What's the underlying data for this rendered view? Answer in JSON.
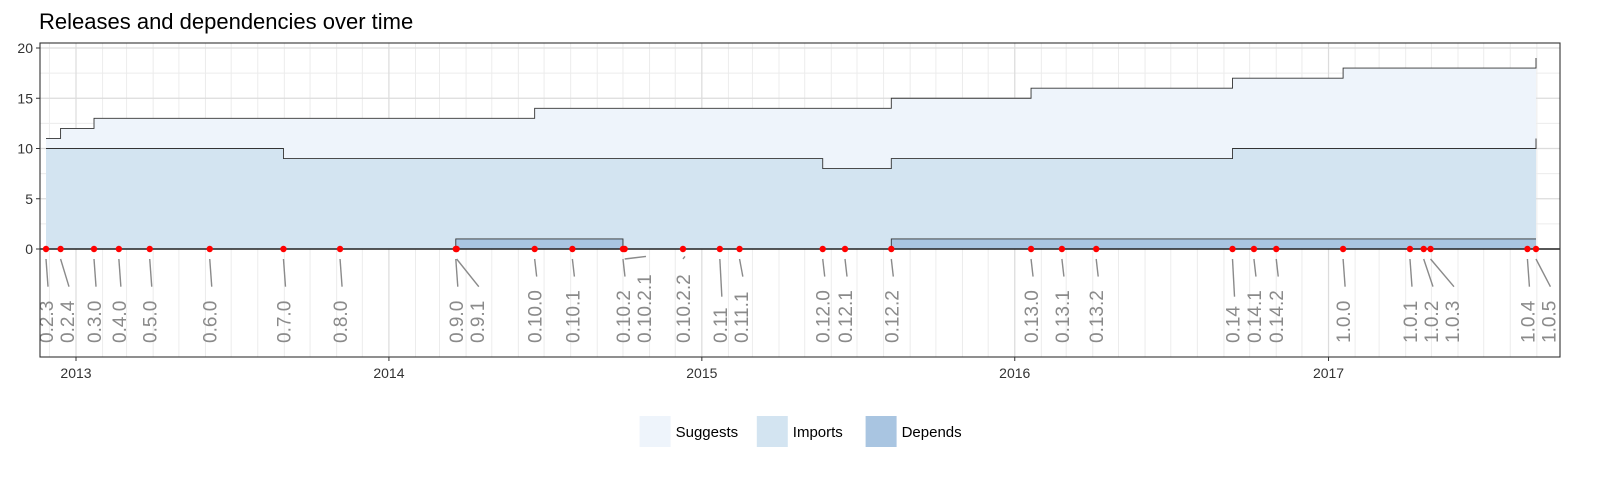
{
  "chart_data": {
    "type": "area",
    "title": "Releases and dependencies over time",
    "xlabel": "",
    "ylabel": "",
    "ylim": [
      0,
      20
    ],
    "y_ticks": [
      0,
      5,
      10,
      15,
      20
    ],
    "x_range": [
      "2012-11-20",
      "2017-09-28"
    ],
    "x_ticks": [
      {
        "date": "2013-01-01",
        "label": "2013"
      },
      {
        "date": "2014-01-01",
        "label": "2014"
      },
      {
        "date": "2015-01-01",
        "label": "2015"
      },
      {
        "date": "2016-01-01",
        "label": "2016"
      },
      {
        "date": "2017-01-01",
        "label": "2017"
      }
    ],
    "grid": true,
    "legend_position": "bottom",
    "colors": {
      "Suggests": "#eef4fb",
      "Imports": "#d3e4f1",
      "Depends": "#a9c5e1",
      "release_point": "#ff0000"
    },
    "releases": [
      {
        "version": "0.2.3",
        "date": "2012-11-27",
        "depends": 0,
        "imports": 10,
        "suggests": 1
      },
      {
        "version": "0.2.4",
        "date": "2012-12-14",
        "depends": 0,
        "imports": 10,
        "suggests": 2
      },
      {
        "version": "0.3.0",
        "date": "2013-01-22",
        "depends": 0,
        "imports": 10,
        "suggests": 3
      },
      {
        "version": "0.4.0",
        "date": "2013-02-20",
        "depends": 0,
        "imports": 10,
        "suggests": 3
      },
      {
        "version": "0.5.0",
        "date": "2013-03-28",
        "depends": 0,
        "imports": 10,
        "suggests": 3
      },
      {
        "version": "0.6.0",
        "date": "2013-06-06",
        "depends": 0,
        "imports": 10,
        "suggests": 3
      },
      {
        "version": "0.7.0",
        "date": "2013-08-31",
        "depends": 0,
        "imports": 9,
        "suggests": 4
      },
      {
        "version": "0.8.0",
        "date": "2013-11-05",
        "depends": 0,
        "imports": 9,
        "suggests": 4
      },
      {
        "version": "0.9.0",
        "date": "2014-03-20",
        "depends": 1,
        "imports": 8,
        "suggests": 4
      },
      {
        "version": "0.9.1",
        "date": "2014-03-21",
        "depends": 1,
        "imports": 8,
        "suggests": 4
      },
      {
        "version": "0.10.0",
        "date": "2014-06-20",
        "depends": 1,
        "imports": 8,
        "suggests": 5
      },
      {
        "version": "0.10.1",
        "date": "2014-08-03",
        "depends": 1,
        "imports": 8,
        "suggests": 5
      },
      {
        "version": "0.10.2",
        "date": "2014-10-01",
        "depends": 0,
        "imports": 9,
        "suggests": 5
      },
      {
        "version": "0.10.2.1",
        "date": "2014-10-03",
        "depends": 0,
        "imports": 9,
        "suggests": 5
      },
      {
        "version": "0.10.2.2",
        "date": "2014-12-10",
        "depends": 0,
        "imports": 9,
        "suggests": 5
      },
      {
        "version": "0.11",
        "date": "2015-01-22",
        "depends": 0,
        "imports": 9,
        "suggests": 5
      },
      {
        "version": "0.11.1",
        "date": "2015-02-14",
        "depends": 0,
        "imports": 9,
        "suggests": 5
      },
      {
        "version": "0.12.0",
        "date": "2015-05-22",
        "depends": 0,
        "imports": 8,
        "suggests": 6
      },
      {
        "version": "0.12.1",
        "date": "2015-06-17",
        "depends": 0,
        "imports": 8,
        "suggests": 6
      },
      {
        "version": "0.12.2",
        "date": "2015-08-10",
        "depends": 1,
        "imports": 8,
        "suggests": 6
      },
      {
        "version": "0.13.0",
        "date": "2016-01-20",
        "depends": 1,
        "imports": 8,
        "suggests": 7
      },
      {
        "version": "0.13.1",
        "date": "2016-02-25",
        "depends": 1,
        "imports": 8,
        "suggests": 7
      },
      {
        "version": "0.13.2",
        "date": "2016-04-05",
        "depends": 1,
        "imports": 8,
        "suggests": 7
      },
      {
        "version": "0.14",
        "date": "2016-09-11",
        "depends": 1,
        "imports": 9,
        "suggests": 7
      },
      {
        "version": "0.14.1",
        "date": "2016-10-06",
        "depends": 1,
        "imports": 9,
        "suggests": 7
      },
      {
        "version": "0.14.2",
        "date": "2016-11-01",
        "depends": 1,
        "imports": 9,
        "suggests": 7
      },
      {
        "version": "1.0.0",
        "date": "2017-01-18",
        "depends": 1,
        "imports": 9,
        "suggests": 8
      },
      {
        "version": "1.0.1",
        "date": "2017-04-06",
        "depends": 1,
        "imports": 9,
        "suggests": 8
      },
      {
        "version": "1.0.2",
        "date": "2017-04-22",
        "depends": 1,
        "imports": 9,
        "suggests": 8
      },
      {
        "version": "1.0.3",
        "date": "2017-04-30",
        "depends": 1,
        "imports": 9,
        "suggests": 8
      },
      {
        "version": "1.0.4",
        "date": "2017-08-21",
        "depends": 1,
        "imports": 9,
        "suggests": 8
      },
      {
        "version": "1.0.5",
        "date": "2017-08-31",
        "depends": 1,
        "imports": 10,
        "suggests": 8
      }
    ],
    "series": [
      {
        "name": "Suggests"
      },
      {
        "name": "Imports"
      },
      {
        "name": "Depends"
      }
    ]
  }
}
